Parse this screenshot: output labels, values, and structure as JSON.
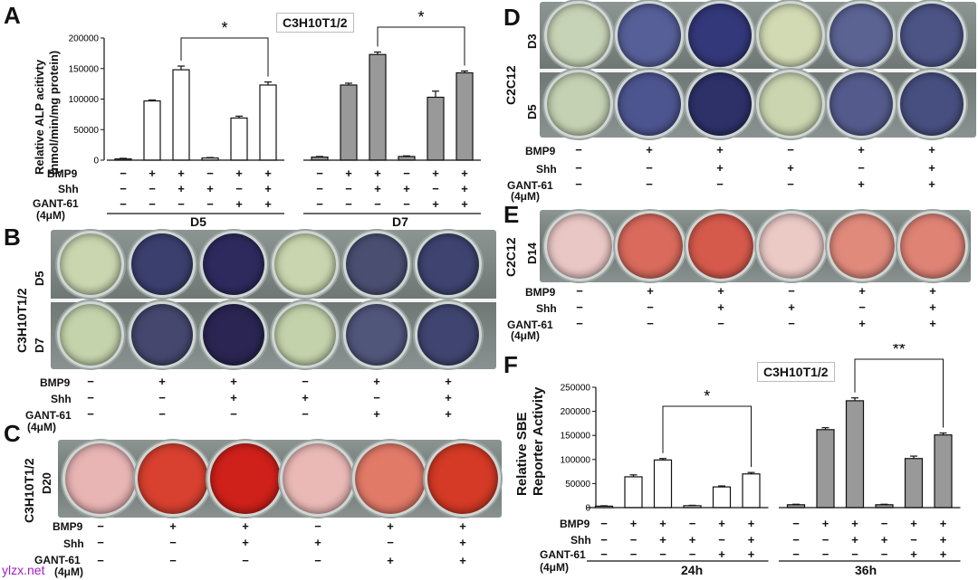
{
  "watermark": "ylzx.net",
  "panelA": {
    "letter": "A",
    "title": "C3H10T1/2",
    "ylabel1": "Relative ALP acitivty",
    "ylabel2": "(nmol/min/mg protein)",
    "sig": [
      "*",
      "*"
    ],
    "days": [
      "D5",
      "D7"
    ],
    "row_labels": [
      "BMP9",
      "Shh",
      "GANT-61",
      "(4μM)"
    ]
  },
  "panelB": {
    "letter": "B",
    "cell": "C3H10T1/2",
    "rows": [
      "D5",
      "D7"
    ],
    "row_labels": [
      "BMP9",
      "Shh",
      "GANT-61",
      "(4μM)"
    ]
  },
  "panelC": {
    "letter": "C",
    "cell": "C3H10T1/2",
    "rows": [
      "D20"
    ],
    "row_labels": [
      "BMP9",
      "Shh",
      "GANT-61",
      "(4μM)"
    ]
  },
  "panelD": {
    "letter": "D",
    "cell": "C2C12",
    "rows": [
      "D3",
      "D5"
    ],
    "row_labels": [
      "BMP9",
      "Shh",
      "GANT-61",
      "(4μM)"
    ]
  },
  "panelE": {
    "letter": "E",
    "cell": "C2C12",
    "rows": [
      "D14"
    ],
    "row_labels": [
      "BMP9",
      "Shh",
      "GANT-61",
      "(4μM)"
    ]
  },
  "panelF": {
    "letter": "F",
    "title": "C3H10T1/2",
    "ylabel1": "Relative SBE",
    "ylabel2": "Reporter Activity",
    "sig": [
      "*",
      "**"
    ],
    "times": [
      "24h",
      "36h"
    ],
    "row_labels": [
      "BMP9",
      "Shh",
      "GANT-61",
      "(4μM)"
    ]
  },
  "treatments": {
    "BMP9": [
      "−",
      "+",
      "+",
      "−",
      "+",
      "+"
    ],
    "Shh": [
      "−",
      "−",
      "+",
      "+",
      "−",
      "+"
    ],
    "GANT": [
      "−",
      "−",
      "−",
      "−",
      "+",
      "+"
    ]
  },
  "well_colors": {
    "B_D5": [
      "#c9d6b0",
      "#3b3f6e",
      "#2e2a5e",
      "#c8d5ae",
      "#4a4f72",
      "#3e4370"
    ],
    "B_D7": [
      "#c5d3ac",
      "#45476e",
      "#2a2552",
      "#c4d2ab",
      "#50557a",
      "#3f4570"
    ],
    "C_D20": [
      "#e8b4b4",
      "#d8402f",
      "#d0201a",
      "#eab9b6",
      "#e27a68",
      "#d43a25"
    ],
    "D_D3": [
      "#c7d3b6",
      "#565f98",
      "#33387a",
      "#d2dab4",
      "#5b6393",
      "#4c5486"
    ],
    "D_D5": [
      "#c4d1b2",
      "#4d5590",
      "#2d3168",
      "#cbd5b0",
      "#545b8c",
      "#474f80"
    ],
    "E_D14": [
      "#e9c7c4",
      "#d96a5c",
      "#d65a4c",
      "#ebcac6",
      "#e08a7c",
      "#df8375"
    ]
  },
  "chart_data": [
    {
      "type": "bar",
      "title": "C3H10T1/2",
      "ylabel": "Relative ALP acitivty (nmol/min/mg protein)",
      "ylim": [
        0,
        200000
      ],
      "yticks": [
        "0",
        "50000",
        "100000",
        "150000",
        "200000"
      ],
      "groups": [
        "D5",
        "D7"
      ],
      "series": [
        {
          "name": "D5",
          "values": [
            2000,
            97000,
            148000,
            3500,
            69000,
            123000
          ],
          "errors": [
            1000,
            1500,
            6000,
            800,
            3000,
            5000
          ],
          "fill": "#ffffff"
        },
        {
          "name": "D7",
          "values": [
            5000,
            123000,
            173000,
            6000,
            103000,
            143000
          ],
          "errors": [
            1000,
            3000,
            4000,
            1000,
            10000,
            3000
          ],
          "fill": "#999999"
        }
      ],
      "comparisons": [
        {
          "group": "D5",
          "from": 2,
          "to": 5,
          "label": "*"
        },
        {
          "group": "D7",
          "from": 2,
          "to": 5,
          "label": "*"
        }
      ]
    },
    {
      "type": "bar",
      "title": "C3H10T1/2",
      "ylabel": "Relative SBE Reporter Activity",
      "ylim": [
        0,
        250000
      ],
      "yticks": [
        "0",
        "50000",
        "100000",
        "150000",
        "200000",
        "250000"
      ],
      "groups": [
        "24h",
        "36h"
      ],
      "series": [
        {
          "name": "24h",
          "values": [
            3000,
            64000,
            99000,
            4000,
            43000,
            70000
          ],
          "errors": [
            800,
            4000,
            3000,
            800,
            2000,
            3000
          ],
          "fill": "#ffffff"
        },
        {
          "name": "36h",
          "values": [
            6000,
            162000,
            222000,
            6000,
            102000,
            151000
          ],
          "errors": [
            1000,
            4000,
            6000,
            1000,
            5000,
            4000
          ],
          "fill": "#999999"
        }
      ],
      "comparisons": [
        {
          "group": "24h",
          "from": 2,
          "to": 5,
          "label": "*"
        },
        {
          "group": "36h",
          "from": 2,
          "to": 5,
          "label": "**"
        }
      ]
    }
  ]
}
